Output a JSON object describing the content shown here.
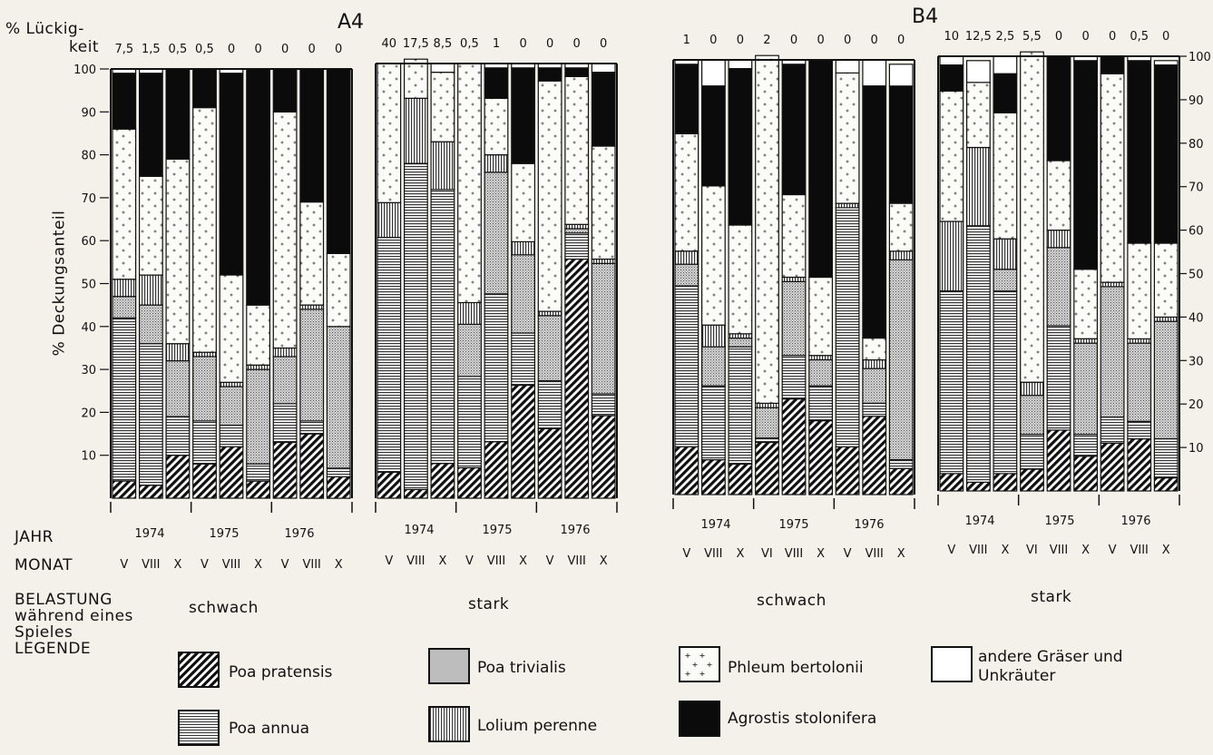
{
  "header": {
    "gap_label_1": "% Lückig-",
    "gap_label_2": "keit",
    "panel_a_title": "A4",
    "panel_b_title": "B4",
    "y_axis_label": "% Deckungsanteil"
  },
  "rows": {
    "year_label": "JAHR",
    "month_label": "MONAT",
    "load_label_1": "BELASTUNG",
    "load_label_2": "während eines",
    "load_label_3": "Spieles",
    "legend_label": "LEGENDE"
  },
  "legend": [
    {
      "key": "pp",
      "name": "Poa pratensis"
    },
    {
      "key": "pa",
      "name": "Poa annua"
    },
    {
      "key": "pt",
      "name": "Poa trivialis"
    },
    {
      "key": "lp",
      "name": "Lolium perenne"
    },
    {
      "key": "ph",
      "name": "Phleum bertolonii"
    },
    {
      "key": "ag",
      "name": "Agrostis stolonifera"
    },
    {
      "key": "ot",
      "name": "andere Gräser und Unkräuter"
    }
  ],
  "chart_data": {
    "type": "bar",
    "stacked": true,
    "ylim": [
      0,
      100
    ],
    "left_ticks": [
      10,
      20,
      30,
      40,
      50,
      60,
      70,
      80,
      90,
      100
    ],
    "right_ticks": [
      10,
      20,
      30,
      40,
      50,
      60,
      70,
      80,
      90,
      100
    ],
    "species_order": [
      "pp",
      "pa",
      "pt",
      "lp",
      "ph",
      "ag",
      "ot"
    ],
    "groups": [
      {
        "panel": "A4",
        "load": "schwach",
        "years": [
          "1974",
          "1975",
          "1976"
        ],
        "months": [
          "V",
          "VIII",
          "X",
          "V",
          "VIII",
          "X",
          "V",
          "VIII",
          "X"
        ],
        "gaps": [
          "7,5",
          "1,5",
          "0,5",
          "0,5",
          "0",
          "0",
          "0",
          "0",
          "0"
        ],
        "bars": [
          [
            4,
            38,
            5,
            4,
            35,
            13,
            1
          ],
          [
            3,
            33,
            9,
            7,
            23,
            24,
            1
          ],
          [
            10,
            9,
            13,
            4,
            43,
            21,
            0
          ],
          [
            8,
            10,
            15,
            1,
            57,
            9,
            0
          ],
          [
            12,
            5,
            9,
            1,
            25,
            47,
            1
          ],
          [
            4,
            4,
            22,
            1,
            14,
            55,
            0
          ],
          [
            13,
            9,
            11,
            2,
            55,
            10,
            0
          ],
          [
            15,
            3,
            26,
            1,
            24,
            31,
            0
          ],
          [
            5,
            2,
            33,
            0,
            17,
            43,
            0
          ]
        ]
      },
      {
        "panel": "A4",
        "load": "stark",
        "years": [
          "1974",
          "1975",
          "1976"
        ],
        "months": [
          "V",
          "VIII",
          "X",
          "V",
          "VIII",
          "X",
          "V",
          "VIII",
          "X"
        ],
        "gaps": [
          "40",
          "17,5",
          "8,5",
          "0,5",
          "1",
          "0",
          "0",
          "0",
          "0"
        ],
        "bars": [
          [
            6,
            54,
            0,
            8,
            32,
            0,
            0
          ],
          [
            2,
            75,
            0,
            15,
            9,
            0,
            0
          ],
          [
            8,
            63,
            0,
            11,
            16,
            0,
            2
          ],
          [
            7,
            21,
            12,
            5,
            55,
            0,
            0
          ],
          [
            13,
            34,
            28,
            4,
            13,
            7,
            1
          ],
          [
            26,
            12,
            18,
            3,
            18,
            22,
            1
          ],
          [
            16,
            11,
            15,
            1,
            53,
            3,
            1
          ],
          [
            55,
            6,
            1,
            1,
            34,
            2,
            1
          ],
          [
            19,
            5,
            30,
            1,
            26,
            17,
            2
          ]
        ]
      },
      {
        "panel": "B4",
        "load": "schwach",
        "years": [
          "1974",
          "1975",
          "1976"
        ],
        "months": [
          "V",
          "VIII",
          "X",
          "VI",
          "VIII",
          "X",
          "V",
          "VIII",
          "X"
        ],
        "gaps": [
          "1",
          "0",
          "0",
          "2",
          "0",
          "0",
          "0",
          "0",
          "0"
        ],
        "bars": [
          [
            11,
            37,
            5,
            3,
            27,
            16,
            1
          ],
          [
            8,
            17,
            9,
            5,
            32,
            23,
            6
          ],
          [
            7,
            27,
            2,
            1,
            25,
            36,
            2
          ],
          [
            12,
            1,
            7,
            1,
            80,
            0,
            0
          ],
          [
            22,
            10,
            17,
            1,
            19,
            30,
            1
          ],
          [
            17,
            8,
            6,
            1,
            18,
            50,
            0
          ],
          [
            11,
            55,
            0,
            1,
            30,
            0,
            3
          ],
          [
            18,
            3,
            8,
            2,
            5,
            58,
            6
          ],
          [
            6,
            2,
            46,
            2,
            11,
            27,
            5
          ]
        ]
      },
      {
        "panel": "B4",
        "load": "stark",
        "years": [
          "1974",
          "1975",
          "1976"
        ],
        "months": [
          "V",
          "VIII",
          "X",
          "VI",
          "VIII",
          "X",
          "V",
          "VIII",
          "X"
        ],
        "gaps": [
          "10",
          "12,5",
          "2,5",
          "5,5",
          "0",
          "0",
          "0",
          "0,5",
          "0"
        ],
        "bars": [
          [
            4,
            42,
            0,
            16,
            30,
            6,
            2
          ],
          [
            2,
            59,
            0,
            18,
            15,
            0,
            5
          ],
          [
            4,
            42,
            5,
            7,
            29,
            9,
            4
          ],
          [
            5,
            8,
            9,
            3,
            76,
            0,
            0
          ],
          [
            14,
            24,
            18,
            4,
            16,
            24,
            0
          ],
          [
            8,
            5,
            21,
            1,
            16,
            48,
            1
          ],
          [
            11,
            6,
            30,
            1,
            48,
            4,
            0
          ],
          [
            12,
            4,
            18,
            1,
            22,
            42,
            1
          ],
          [
            3,
            9,
            27,
            1,
            17,
            41,
            1
          ]
        ]
      }
    ]
  }
}
